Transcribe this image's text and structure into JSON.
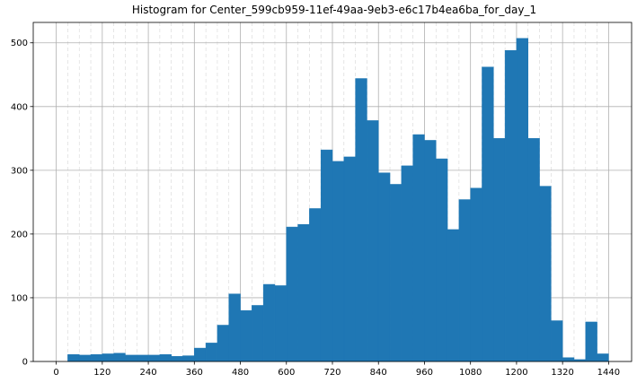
{
  "chart_data": {
    "type": "bar",
    "title": "Histogram for Center_599cb959-11ef-49aa-9eb3-e6c17b4ea6ba_for_day_1",
    "xlabel": "",
    "ylabel": "",
    "xlim": [
      -60,
      1500
    ],
    "ylim": [
      0,
      532
    ],
    "grid": true,
    "bin_width": 30,
    "bin_edges_start": 0,
    "x_ticks": [
      0,
      120,
      240,
      360,
      480,
      600,
      720,
      840,
      960,
      1080,
      1200,
      1320,
      1440
    ],
    "y_ticks": [
      0,
      100,
      200,
      300,
      400,
      500
    ],
    "minor_x_step": 30,
    "values": [
      0,
      11,
      10,
      11,
      12,
      13,
      10,
      10,
      10,
      11,
      8,
      9,
      21,
      29,
      57,
      106,
      80,
      88,
      121,
      119,
      211,
      215,
      240,
      332,
      314,
      321,
      444,
      378,
      296,
      278,
      307,
      356,
      347,
      318,
      207,
      254,
      272,
      462,
      350,
      488,
      507,
      350,
      275,
      64,
      6,
      3,
      62,
      12,
      0
    ]
  }
}
